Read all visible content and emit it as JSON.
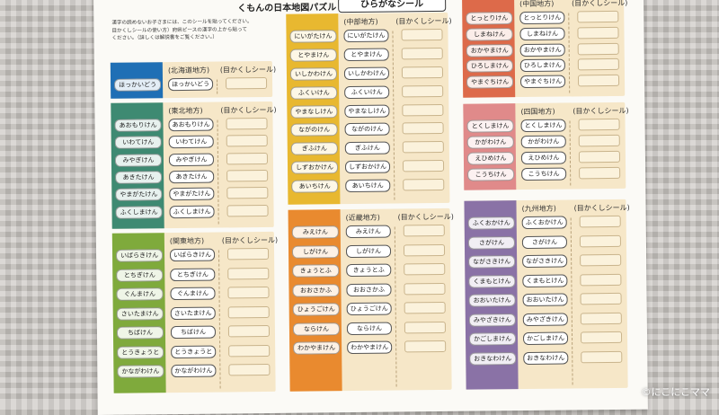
{
  "header": {
    "title": "くもんの日本地図パズル",
    "label": "ひらがなシール"
  },
  "notes": [
    "漢字の読めないお子さまには、このシールを貼ってください。",
    "目かくしシールの使い方）府県ピースの漢字の上から貼って",
    "ください。（詳しくは解説書をご覧ください。）"
  ],
  "regions": [
    {
      "id": "hokkaido",
      "heading": "(北海道地方)",
      "blind_label": "(目かくしシール)",
      "color": "#1f6fb5",
      "items": [
        "ほっかいどう"
      ]
    },
    {
      "id": "tohoku",
      "heading": "(東北地方)",
      "blind_label": "(目かくしシール)",
      "color": "#3e8a72",
      "items": [
        "あおもりけん",
        "いわてけん",
        "みやぎけん",
        "あきたけん",
        "やまがたけん",
        "ふくしまけん"
      ]
    },
    {
      "id": "kanto",
      "heading": "(関東地方)",
      "blind_label": "(目かくしシール)",
      "color": "#7faa3c",
      "items": [
        "いばらきけん",
        "とちぎけん",
        "ぐんまけん",
        "さいたまけん",
        "ちばけん",
        "とうきょうと",
        "かながわけん"
      ]
    },
    {
      "id": "chubu",
      "heading": "(中部地方)",
      "blind_label": "(目かくしシール)",
      "color": "#e8b830",
      "items": [
        "にいがたけん",
        "とやまけん",
        "いしかわけん",
        "ふくいけん",
        "やまなしけん",
        "ながのけん",
        "ぎふけん",
        "しずおかけん",
        "あいちけん"
      ]
    },
    {
      "id": "kinki",
      "heading": "(近畿地方)",
      "blind_label": "(目かくしシール)",
      "color": "#e98a2f",
      "items": [
        "みえけん",
        "しがけん",
        "きょうとふ",
        "おおさかふ",
        "ひょうごけん",
        "ならけん",
        "わかやまけん"
      ]
    },
    {
      "id": "chugoku",
      "heading": "(中国地方)",
      "blind_label": "(目かくしシール)",
      "color": "#dd6a4a",
      "items": [
        "とっとりけん",
        "しまねけん",
        "おかやまけん",
        "ひろしまけん",
        "やまぐちけん"
      ]
    },
    {
      "id": "shikoku",
      "heading": "(四国地方)",
      "blind_label": "(目かくしシール)",
      "color": "#e08a8a",
      "items": [
        "とくしまけん",
        "かがわけん",
        "えひめけん",
        "こうちけん"
      ]
    },
    {
      "id": "kyushu",
      "heading": "(九州地方)",
      "blind_label": "(目かくしシール)",
      "color": "#8a72a6",
      "items": [
        "ふくおかけん",
        "さがけん",
        "ながさきけん",
        "くまもとけん",
        "おおいたけん",
        "みやざきけん",
        "かごしまけん",
        "おきなわけん"
      ]
    }
  ],
  "credit": "©にこにこママ"
}
